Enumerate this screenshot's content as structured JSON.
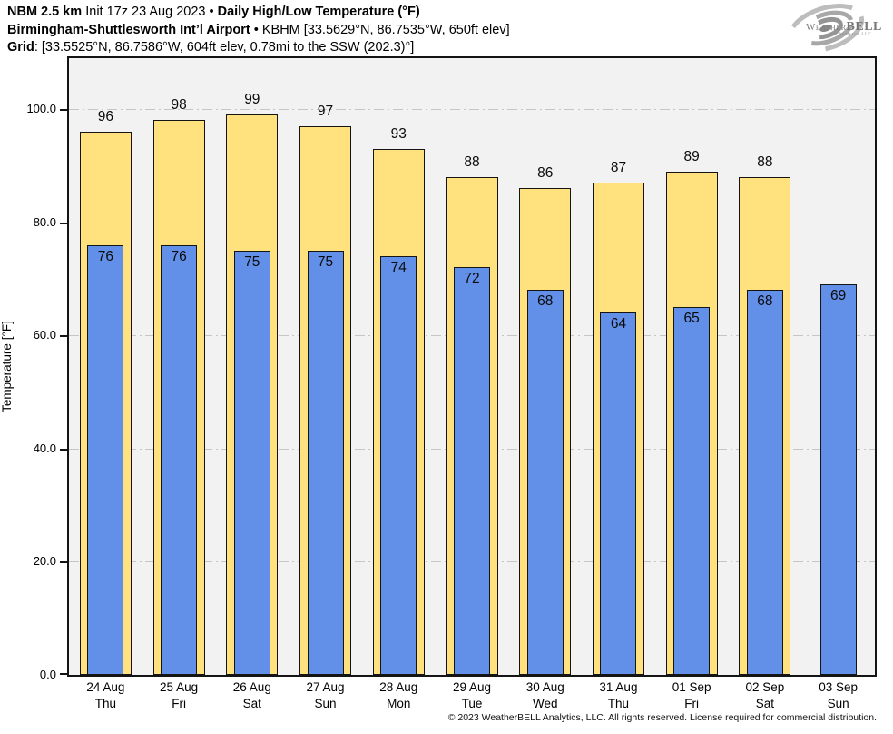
{
  "header": {
    "line1": {
      "bold1": "NBM 2.5 km",
      "mid": " Init 17z 23 Aug 2023 • ",
      "bold2": "Daily High/Low Temperature (°F)"
    },
    "line2": {
      "bold": "Birmingham-Shuttlesworth Int’l Airport",
      "rest": " • KBHM [33.5629°N, 86.7535°W, 650ft elev]"
    },
    "line3": {
      "bold": "Grid",
      "rest": ": [33.5525°N, 86.7586°W, 604ft elev, 0.78mi to the SSW (202.3)°]"
    }
  },
  "logo": {
    "brand": "Weather",
    "brand_bold": "BELL",
    "tagline": "Analytics LLC"
  },
  "chart_data": {
    "type": "bar",
    "title": "Daily High/Low Temperature (°F)",
    "xlabel": "",
    "ylabel": "Temperature [°F]",
    "ylim": [
      0,
      109
    ],
    "yticks": [
      0,
      20,
      40,
      60,
      80,
      100
    ],
    "ytick_labels": [
      "0.0",
      "20.0",
      "40.0",
      "60.0",
      "80.0",
      "100.0"
    ],
    "grid": "horizontal-dashdot",
    "legend_position": "none",
    "categories": [
      "24 Aug",
      "25 Aug",
      "26 Aug",
      "27 Aug",
      "28 Aug",
      "29 Aug",
      "30 Aug",
      "31 Aug",
      "01 Sep",
      "02 Sep",
      "03 Sep"
    ],
    "weekdays": [
      "Thu",
      "Fri",
      "Sat",
      "Sun",
      "Mon",
      "Tue",
      "Wed",
      "Thu",
      "Fri",
      "Sat",
      "Sun"
    ],
    "series": [
      {
        "name": "High",
        "color": "#FFE17E",
        "values": [
          96,
          98,
          99,
          97,
          93,
          88,
          86,
          87,
          89,
          88,
          null
        ]
      },
      {
        "name": "Low",
        "color": "#6290E9",
        "values": [
          76,
          76,
          75,
          75,
          74,
          72,
          68,
          64,
          65,
          68,
          69
        ]
      }
    ]
  },
  "footer": {
    "copyright": "© 2023 WeatherBELL Analytics, LLC. All rights reserved. License required for commercial distribution."
  },
  "colors": {
    "plot_bg": "#F2F2F2",
    "frame": "#141414",
    "grid": "#C6C6C6",
    "high_fill": "#FFE17E",
    "low_fill": "#6290E9"
  }
}
